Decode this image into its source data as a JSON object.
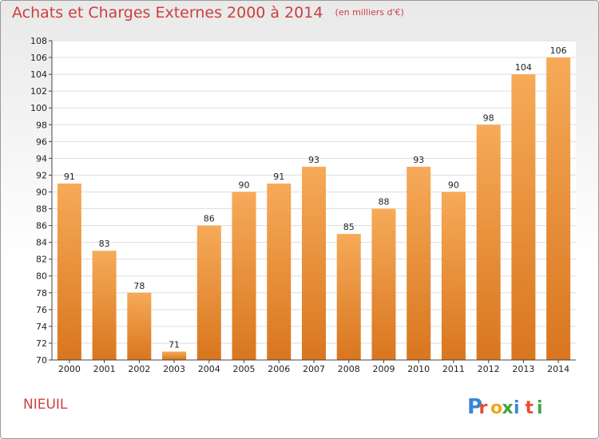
{
  "header": {
    "title": "Achats et Charges Externes 2000 à 2014",
    "subtitle": "(en milliers d'€)"
  },
  "footer": {
    "commune": "NIEUIL",
    "logo_letters": [
      "P",
      "r",
      "o",
      "x",
      "i",
      "t",
      "i"
    ],
    "logo_colors": [
      "#3a86d6",
      "#e84e2c",
      "#f2a51d",
      "#43a543",
      "#3a86d6",
      "#e84e2c",
      "#43a543"
    ]
  },
  "colors": {
    "bar_light": "#f6aa58",
    "bar_dark": "#d9761f",
    "title": "#cc3f3f",
    "grid": "#dddddd"
  },
  "chart_data": {
    "type": "bar",
    "title": "Achats et Charges Externes 2000 à 2014",
    "subtitle": "(en milliers d'€)",
    "categories": [
      "2000",
      "2001",
      "2002",
      "2003",
      "2004",
      "2005",
      "2006",
      "2007",
      "2008",
      "2009",
      "2010",
      "2011",
      "2012",
      "2013",
      "2014"
    ],
    "values": [
      91,
      83,
      78,
      71,
      86,
      90,
      91,
      93,
      85,
      88,
      93,
      90,
      98,
      104,
      106
    ],
    "ylim": [
      70,
      108
    ],
    "yticks": [
      70,
      72,
      74,
      76,
      78,
      80,
      82,
      84,
      86,
      88,
      90,
      92,
      94,
      96,
      98,
      100,
      102,
      104,
      106,
      108
    ],
    "grid": true,
    "data_labels": true
  }
}
